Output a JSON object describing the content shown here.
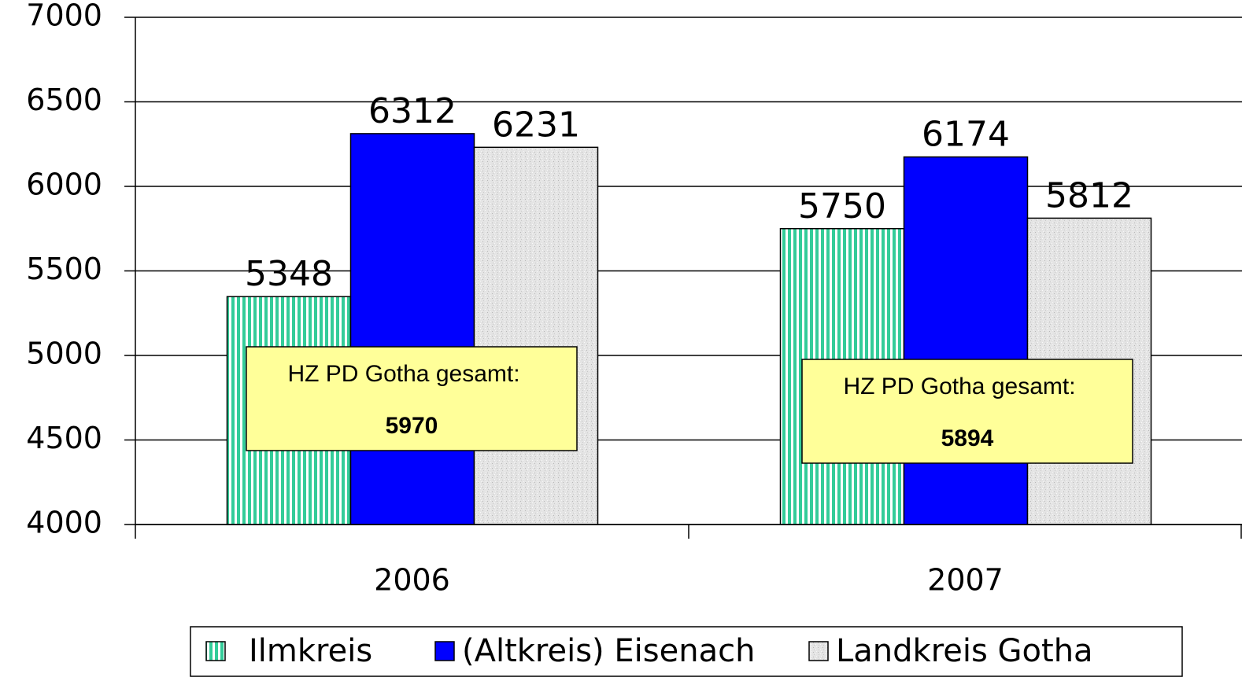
{
  "chart_data": {
    "type": "bar",
    "categories": [
      "2006",
      "2007"
    ],
    "series": [
      {
        "name": "Ilmkreis",
        "color": "#33cc99",
        "pattern": "vertical-stripes",
        "values": [
          5348,
          5750
        ]
      },
      {
        "name": "(Altkreis) Eisenach",
        "color": "#0000ff",
        "values": [
          6312,
          6174
        ]
      },
      {
        "name": "Landkreis Gotha",
        "color": "#e4e4e4",
        "pattern": "speckle",
        "values": [
          6231,
          5812
        ]
      }
    ],
    "ylim": [
      4000,
      7000
    ],
    "yticks": [
      4000,
      4500,
      5000,
      5500,
      6000,
      6500,
      7000
    ],
    "grid": true,
    "legend": "bottom",
    "annotations": [
      {
        "text": "HZ PD Gotha gesamt:",
        "value": 5970
      },
      {
        "text": "HZ PD Gotha gesamt:",
        "value": 5894
      }
    ]
  }
}
